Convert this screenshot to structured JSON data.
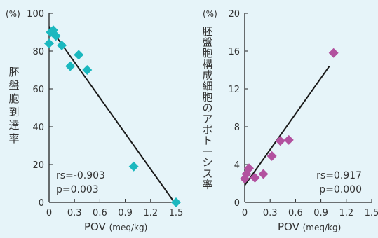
{
  "chart_data": [
    {
      "type": "scatter",
      "y_unit": "(%)",
      "ylabel": "胚盤胞到達率",
      "xlabel": "POV",
      "xlabel_unit": "(meq/kg)",
      "xlim": [
        0,
        1.5
      ],
      "ylim": [
        0,
        100
      ],
      "xticks": [
        "0",
        "0.3",
        "0.6",
        "0.9",
        "1.2",
        "1.5"
      ],
      "yticks": [
        "0",
        "20",
        "40",
        "60",
        "80",
        "100"
      ],
      "marker_color": "#1bb8bf",
      "points": [
        {
          "x": 0.0,
          "y": 84
        },
        {
          "x": 0.02,
          "y": 90
        },
        {
          "x": 0.05,
          "y": 91
        },
        {
          "x": 0.08,
          "y": 88
        },
        {
          "x": 0.15,
          "y": 83
        },
        {
          "x": 0.25,
          "y": 72
        },
        {
          "x": 0.35,
          "y": 78
        },
        {
          "x": 0.45,
          "y": 70
        },
        {
          "x": 1.0,
          "y": 19
        },
        {
          "x": 1.5,
          "y": 0
        }
      ],
      "trendline": {
        "x1": 0.0,
        "y1": 93,
        "x2": 1.48,
        "y2": 0
      },
      "stat_rs": "rs=-0.903",
      "stat_p": "p=0.003"
    },
    {
      "type": "scatter",
      "y_unit": "(%)",
      "ylabel": "胚盤胞構成細胞のアポトーシス率",
      "xlabel": "POV",
      "xlabel_unit": "(meq/kg)",
      "xlim": [
        0,
        1.5
      ],
      "ylim": [
        0,
        20
      ],
      "xticks": [
        "0",
        "0.3",
        "0.6",
        "0.9",
        "1.2",
        "1.5"
      ],
      "yticks": [
        "0",
        "4",
        "8",
        "12",
        "16",
        "20"
      ],
      "marker_color": "#b2519f",
      "points": [
        {
          "x": 0.0,
          "y": 2.5
        },
        {
          "x": 0.02,
          "y": 3.0
        },
        {
          "x": 0.05,
          "y": 3.6
        },
        {
          "x": 0.12,
          "y": 2.6
        },
        {
          "x": 0.22,
          "y": 3.0
        },
        {
          "x": 0.32,
          "y": 4.9
        },
        {
          "x": 0.42,
          "y": 6.5
        },
        {
          "x": 0.52,
          "y": 6.6
        },
        {
          "x": 1.05,
          "y": 15.8
        }
      ],
      "trendline": {
        "x1": 0.0,
        "y1": 1.8,
        "x2": 1.0,
        "y2": 14.4
      },
      "stat_rs": "rs=0.917",
      "stat_p": "p=0.000"
    }
  ]
}
